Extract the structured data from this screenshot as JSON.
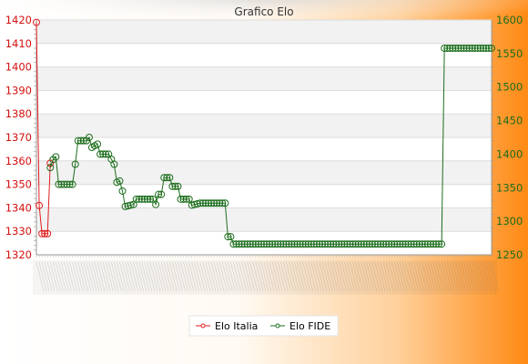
{
  "chart_data": {
    "type": "line",
    "title": "Grafico Elo",
    "x_tick_count": 165,
    "y_left": {
      "lim": [
        1320,
        1420
      ],
      "ticks": [
        1320,
        1330,
        1340,
        1350,
        1360,
        1370,
        1380,
        1390,
        1400,
        1410,
        1420
      ]
    },
    "y_right": {
      "lim": [
        1250,
        1600
      ],
      "ticks": [
        1250,
        1300,
        1350,
        1400,
        1450,
        1500,
        1550,
        1600
      ]
    },
    "grid": true,
    "legend": {
      "position": "bottom-center"
    },
    "series": [
      {
        "name": "Elo Italia",
        "axis": "left",
        "color": "#e01e1e",
        "values": [
          1419,
          1341,
          1329,
          1329,
          1329,
          1359
        ]
      },
      {
        "name": "Elo FIDE",
        "axis": "right",
        "color": "#1c6d1c",
        "segments": [
          {
            "start": 5,
            "end": 6,
            "from": 1380,
            "to": 1392
          },
          {
            "start": 6,
            "end": 7,
            "from": 1392,
            "to": 1396
          },
          {
            "start": 7,
            "end": 8,
            "from": 1396,
            "to": 1355
          },
          {
            "start": 8,
            "end": 13,
            "from": 1355,
            "to": 1355
          },
          {
            "start": 13,
            "end": 14,
            "from": 1355,
            "to": 1385
          },
          {
            "start": 14,
            "end": 15,
            "from": 1385,
            "to": 1420
          },
          {
            "start": 15,
            "end": 18,
            "from": 1420,
            "to": 1420
          },
          {
            "start": 18,
            "end": 19,
            "from": 1420,
            "to": 1425
          },
          {
            "start": 19,
            "end": 20,
            "from": 1425,
            "to": 1410
          },
          {
            "start": 20,
            "end": 22,
            "from": 1410,
            "to": 1415
          },
          {
            "start": 22,
            "end": 23,
            "from": 1415,
            "to": 1400
          },
          {
            "start": 23,
            "end": 26,
            "from": 1400,
            "to": 1400
          },
          {
            "start": 26,
            "end": 28,
            "from": 1400,
            "to": 1385
          },
          {
            "start": 28,
            "end": 29,
            "from": 1385,
            "to": 1358
          },
          {
            "start": 29,
            "end": 30,
            "from": 1358,
            "to": 1360
          },
          {
            "start": 30,
            "end": 31,
            "from": 1360,
            "to": 1345
          },
          {
            "start": 31,
            "end": 32,
            "from": 1345,
            "to": 1322
          },
          {
            "start": 32,
            "end": 35,
            "from": 1322,
            "to": 1325
          },
          {
            "start": 35,
            "end": 36,
            "from": 1325,
            "to": 1333
          },
          {
            "start": 36,
            "end": 42,
            "from": 1333,
            "to": 1333
          },
          {
            "start": 42,
            "end": 43,
            "from": 1333,
            "to": 1325
          },
          {
            "start": 43,
            "end": 44,
            "from": 1325,
            "to": 1340
          },
          {
            "start": 44,
            "end": 45,
            "from": 1340,
            "to": 1340
          },
          {
            "start": 45,
            "end": 46,
            "from": 1340,
            "to": 1365
          },
          {
            "start": 46,
            "end": 48,
            "from": 1365,
            "to": 1365
          },
          {
            "start": 48,
            "end": 49,
            "from": 1365,
            "to": 1352
          },
          {
            "start": 49,
            "end": 51,
            "from": 1352,
            "to": 1352
          },
          {
            "start": 51,
            "end": 52,
            "from": 1352,
            "to": 1333
          },
          {
            "start": 52,
            "end": 55,
            "from": 1333,
            "to": 1333
          },
          {
            "start": 55,
            "end": 56,
            "from": 1333,
            "to": 1324
          },
          {
            "start": 56,
            "end": 59,
            "from": 1324,
            "to": 1327
          },
          {
            "start": 59,
            "end": 68,
            "from": 1327,
            "to": 1327
          },
          {
            "start": 68,
            "end": 69,
            "from": 1327,
            "to": 1277
          },
          {
            "start": 69,
            "end": 70,
            "from": 1277,
            "to": 1277
          },
          {
            "start": 70,
            "end": 71,
            "from": 1277,
            "to": 1266
          },
          {
            "start": 71,
            "end": 146,
            "from": 1266,
            "to": 1266
          },
          {
            "start": 146,
            "end": 147,
            "from": 1266,
            "to": 1558
          },
          {
            "start": 147,
            "end": 164,
            "from": 1558,
            "to": 1558
          }
        ]
      }
    ]
  }
}
